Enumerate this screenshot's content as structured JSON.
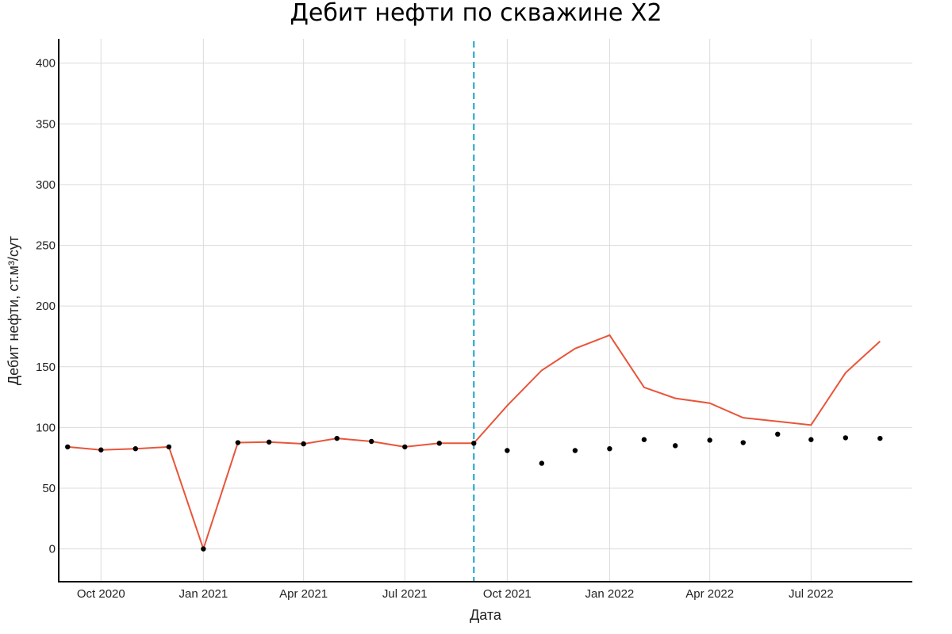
{
  "chart_data": {
    "type": "line",
    "title": "Дебит нефти по скважине X2",
    "xlabel": "Дата",
    "ylabel": "Дебит нефти, ст.м³/сут",
    "ylim": [
      -27,
      420
    ],
    "xlim": [
      "2020-08-24",
      "2022-09-30"
    ],
    "yticks": [
      0,
      50,
      100,
      150,
      200,
      250,
      300,
      350,
      400
    ],
    "xticks": [
      {
        "date": "2020-10-01",
        "label": "Oct 2020"
      },
      {
        "date": "2021-01-01",
        "label": "Jan 2021"
      },
      {
        "date": "2021-04-01",
        "label": "Apr 2021"
      },
      {
        "date": "2021-07-01",
        "label": "Jul 2021"
      },
      {
        "date": "2021-10-01",
        "label": "Oct 2021"
      },
      {
        "date": "2022-01-01",
        "label": "Jan 2022"
      },
      {
        "date": "2022-04-01",
        "label": "Apr 2022"
      },
      {
        "date": "2022-07-01",
        "label": "Jul 2022"
      }
    ],
    "vline": {
      "date": "2021-09-01",
      "color": "#17a2c8",
      "style": "dashed"
    },
    "grid": true,
    "series": [
      {
        "kind": "line",
        "color": "#e8553a",
        "points": [
          {
            "x": "2020-09-01",
            "y": 84
          },
          {
            "x": "2020-10-01",
            "y": 81.5
          },
          {
            "x": "2020-11-01",
            "y": 82.5
          },
          {
            "x": "2020-12-01",
            "y": 84
          },
          {
            "x": "2021-01-01",
            "y": 0
          },
          {
            "x": "2021-02-01",
            "y": 87.5
          },
          {
            "x": "2021-03-01",
            "y": 88
          },
          {
            "x": "2021-04-01",
            "y": 86.5
          },
          {
            "x": "2021-05-01",
            "y": 91
          },
          {
            "x": "2021-06-01",
            "y": 88.5
          },
          {
            "x": "2021-07-01",
            "y": 84
          },
          {
            "x": "2021-08-01",
            "y": 87
          },
          {
            "x": "2021-09-01",
            "y": 87
          },
          {
            "x": "2021-10-01",
            "y": 118
          },
          {
            "x": "2021-11-01",
            "y": 147
          },
          {
            "x": "2021-12-01",
            "y": 165
          },
          {
            "x": "2022-01-01",
            "y": 176
          },
          {
            "x": "2022-02-01",
            "y": 133
          },
          {
            "x": "2022-03-01",
            "y": 124
          },
          {
            "x": "2022-04-01",
            "y": 120
          },
          {
            "x": "2022-05-01",
            "y": 108
          },
          {
            "x": "2022-06-01",
            "y": 105
          },
          {
            "x": "2022-07-01",
            "y": 102
          },
          {
            "x": "2022-08-01",
            "y": 145
          },
          {
            "x": "2022-09-01",
            "y": 171
          }
        ]
      },
      {
        "kind": "scatter",
        "color": "#000000",
        "points": [
          {
            "x": "2020-09-01",
            "y": 84
          },
          {
            "x": "2020-10-01",
            "y": 81.5
          },
          {
            "x": "2020-11-01",
            "y": 82.5
          },
          {
            "x": "2020-12-01",
            "y": 84
          },
          {
            "x": "2021-01-01",
            "y": 0
          },
          {
            "x": "2021-02-01",
            "y": 87.5
          },
          {
            "x": "2021-03-01",
            "y": 88
          },
          {
            "x": "2021-04-01",
            "y": 86.5
          },
          {
            "x": "2021-05-01",
            "y": 91
          },
          {
            "x": "2021-06-01",
            "y": 88.5
          },
          {
            "x": "2021-07-01",
            "y": 84
          },
          {
            "x": "2021-08-01",
            "y": 87
          },
          {
            "x": "2021-09-01",
            "y": 87
          },
          {
            "x": "2021-10-01",
            "y": 81
          },
          {
            "x": "2021-11-01",
            "y": 70.5
          },
          {
            "x": "2021-12-01",
            "y": 81
          },
          {
            "x": "2022-01-01",
            "y": 82.5
          },
          {
            "x": "2022-02-01",
            "y": 90
          },
          {
            "x": "2022-03-01",
            "y": 85
          },
          {
            "x": "2022-04-01",
            "y": 89.5
          },
          {
            "x": "2022-05-01",
            "y": 87.5
          },
          {
            "x": "2022-06-01",
            "y": 94.5
          },
          {
            "x": "2022-07-01",
            "y": 90
          },
          {
            "x": "2022-08-01",
            "y": 91.5
          },
          {
            "x": "2022-09-01",
            "y": 91
          }
        ]
      }
    ]
  }
}
